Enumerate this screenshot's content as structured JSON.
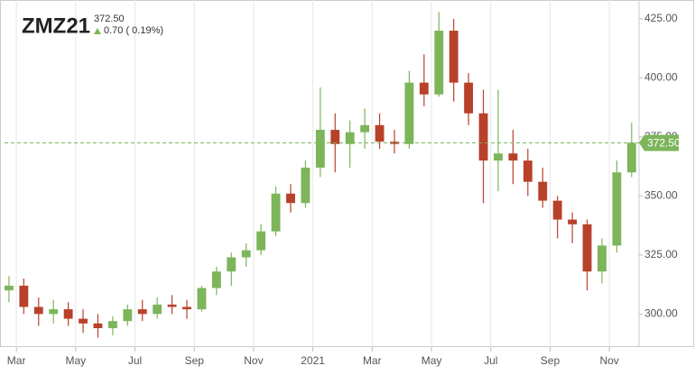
{
  "chart_data": {
    "type": "candlestick",
    "title": "ZMZ21",
    "last_price": {
      "value": 372.5,
      "label": "372.50"
    },
    "change": "0.70 ( 0.19%)",
    "up_color": "#7cb55a",
    "down_color": "#b8412a",
    "open": [
      310,
      312,
      303,
      300,
      302,
      298,
      296,
      294,
      297,
      302,
      300,
      304,
      303,
      302,
      311,
      318,
      324,
      327,
      335,
      351,
      347,
      362,
      378,
      372,
      377,
      380,
      373,
      372,
      398,
      393,
      420,
      398,
      385,
      365,
      368,
      365,
      356,
      348,
      340,
      338,
      318,
      329,
      360
    ],
    "high": [
      316,
      315,
      307,
      306,
      305,
      302,
      300,
      299,
      304,
      306,
      307,
      308,
      306,
      312,
      320,
      326,
      330,
      338,
      354,
      355,
      365,
      396,
      385,
      382,
      387,
      385,
      378,
      403,
      410,
      428,
      425,
      402,
      395,
      395,
      378,
      370,
      362,
      350,
      343,
      340,
      332,
      365,
      381
    ],
    "low": [
      305,
      300,
      295,
      296,
      295,
      292,
      290,
      291,
      295,
      297,
      298,
      300,
      298,
      301,
      308,
      312,
      320,
      325,
      333,
      343,
      345,
      358,
      360,
      362,
      370,
      370,
      368,
      370,
      388,
      392,
      390,
      380,
      347,
      352,
      355,
      350,
      345,
      332,
      330,
      310,
      313,
      326,
      358
    ],
    "close": [
      312,
      303,
      300,
      302,
      298,
      296,
      294,
      297,
      302,
      300,
      304,
      303,
      302,
      311,
      318,
      324,
      327,
      335,
      351,
      347,
      362,
      378,
      372,
      377,
      380,
      373,
      372,
      398,
      393,
      420,
      398,
      385,
      365,
      368,
      365,
      356,
      348,
      340,
      338,
      318,
      329,
      360,
      372.5
    ],
    "xlim": [
      -0.3,
      42.5
    ],
    "xticks": [
      {
        "value": 0.5,
        "label": "Mar"
      },
      {
        "value": 4.5,
        "label": "May"
      },
      {
        "value": 8.5,
        "label": "Jul"
      },
      {
        "value": 12.5,
        "label": "Sep"
      },
      {
        "value": 16.5,
        "label": "Nov"
      },
      {
        "value": 20.5,
        "label": "2021"
      },
      {
        "value": 24.5,
        "label": "Mar"
      },
      {
        "value": 28.5,
        "label": "May"
      },
      {
        "value": 32.5,
        "label": "Jul"
      },
      {
        "value": 36.5,
        "label": "Sep"
      },
      {
        "value": 40.5,
        "label": "Nov"
      }
    ],
    "ylim": [
      286,
      433
    ],
    "yticks": [
      {
        "value": 300,
        "label": "300.00"
      },
      {
        "value": 325,
        "label": "325.00"
      },
      {
        "value": 350,
        "label": "350.00"
      },
      {
        "value": 375,
        "label": "375.00"
      },
      {
        "value": 400,
        "label": "400.00"
      },
      {
        "value": 425,
        "label": "425.00"
      }
    ],
    "grid": true
  }
}
